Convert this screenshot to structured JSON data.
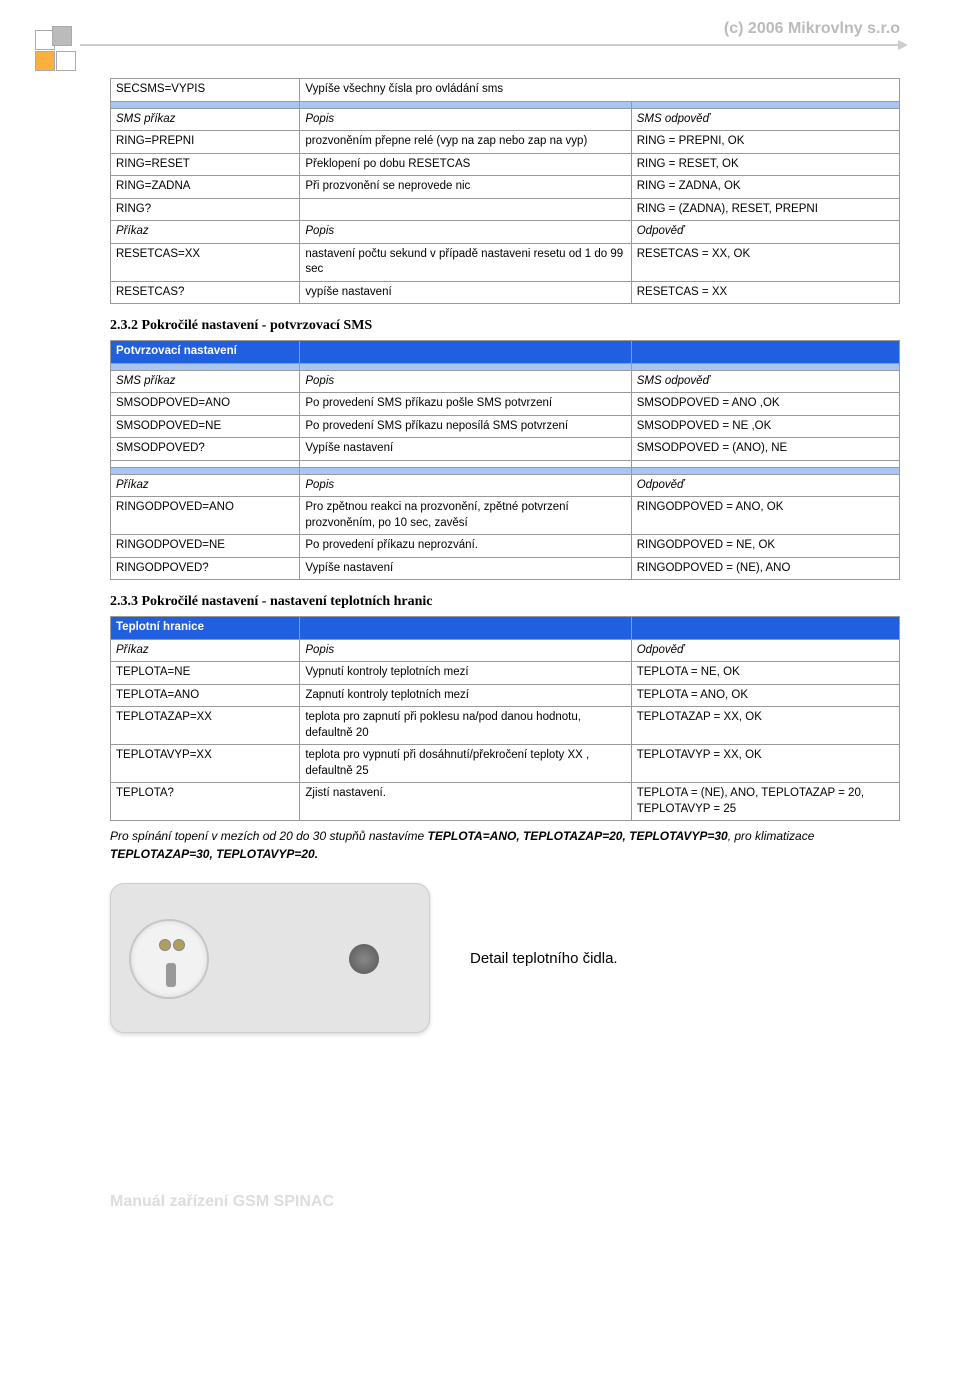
{
  "header": "(c) 2006   Mikrovlny s.r.o",
  "t1": {
    "r1": [
      "SECSMS=VYPIS",
      "Vypíše všechny čísla pro ovládání sms",
      ""
    ],
    "r2": [
      "",
      "",
      ""
    ],
    "r3": [
      "SMS příkaz",
      "Popis",
      "SMS odpověď"
    ],
    "r4": [
      "RING=PREPNI",
      "prozvoněním přepne relé  (vyp na zap nebo zap na vyp)",
      "RING = PREPNI, OK"
    ],
    "r5": [
      "RING=RESET",
      "Překlopení po dobu RESETCAS",
      "RING = RESET, OK"
    ],
    "r6": [
      "RING=ZADNA",
      "Při prozvonění se neprovede nic",
      "RING = ZADNA, OK"
    ],
    "r7": [
      "RING?",
      "",
      "RING = (ZADNA), RESET, PREPNI"
    ],
    "r8": [
      "Příkaz",
      "Popis",
      "Odpověď"
    ],
    "r9": [
      "RESETCAS=XX",
      "nastavení počtu sekund v případě nastaveni resetu od 1 do 99 sec",
      "RESETCAS = XX, OK"
    ],
    "r10": [
      "RESETCAS?",
      "vypíše nastavení",
      "RESETCAS = XX"
    ]
  },
  "h2": "2.3.2 Pokročilé nastavení - potvrzovací SMS",
  "t2": {
    "h": [
      "Potvrzovací nastavení",
      "",
      ""
    ],
    "b1": [
      "",
      "",
      ""
    ],
    "r1": [
      "SMS příkaz",
      "Popis",
      "SMS odpověď"
    ],
    "r2": [
      "SMSODPOVED=ANO",
      "Po provedení SMS příkazu pošle SMS potvrzení",
      "SMSODPOVED = ANO ,OK"
    ],
    "r3": [
      "SMSODPOVED=NE",
      "Po provedení SMS příkazu neposílá SMS potvrzení",
      "SMSODPOVED = NE ,OK"
    ],
    "r4": [
      "SMSODPOVED?",
      "Vypíše nastavení",
      "SMSODPOVED  = (ANO), NE"
    ],
    "b2": [
      "",
      "",
      ""
    ],
    "b3": [
      "",
      "",
      ""
    ],
    "r5": [
      "Příkaz",
      "Popis",
      "Odpověď"
    ],
    "r6": [
      "RINGODPOVED=ANO",
      "Pro zpětnou reakci na prozvonění, zpětné potvrzení prozvoněním, po 10 sec, zavěsí",
      "RINGODPOVED = ANO, OK"
    ],
    "r7": [
      "RINGODPOVED=NE",
      "Po provedení příkazu neprozvání.",
      "RINGODPOVED = NE, OK"
    ],
    "r8": [
      "RINGODPOVED?",
      "Vypíše nastavení",
      "RINGODPOVED = (NE), ANO"
    ]
  },
  "h3": "2.3.3 Pokročilé nastavení - nastavení teplotních hranic",
  "t3": {
    "h": [
      "Teplotní hranice",
      "",
      ""
    ],
    "r1": [
      "Příkaz",
      "Popis",
      "Odpověď"
    ],
    "r2": [
      "TEPLOTA=NE",
      "Vypnutí kontroly teplotních mezí",
      "TEPLOTA = NE, OK"
    ],
    "r3": [
      "TEPLOTA=ANO",
      "Zapnutí kontroly teplotních mezí",
      "TEPLOTA = ANO, OK"
    ],
    "r4": [
      "TEPLOTAZAP=XX",
      "teplota pro zapnutí při poklesu na/pod danou hodnotu, defaultně 20",
      "TEPLOTAZAP = XX, OK"
    ],
    "r5": [
      "TEPLOTAVYP=XX",
      "teplota pro vypnutí při dosáhnutí/překročení teploty XX , defaultně 25",
      "TEPLOTAVYP = XX, OK"
    ],
    "r6": [
      "TEPLOTA?",
      "Zjistí  nastavení.",
      "TEPLOTA = (NE), ANO, TEPLOTAZAP = 20, TEPLOTAVYP = 25"
    ]
  },
  "note": "Pro spínání topení v mezích od 20 do 30 stupňů nastavíme <b>TEPLOTA=ANO, TEPLOTAZAP=20, TEPLOTAVYP=30</b>, pro klimatizace <b>TEPLOTAZAP=30, TEPLOTAVYP=20.</b>",
  "detail": "Detail teplotního čidla.",
  "footer": "Manuál zařízení GSM SPINAC"
}
